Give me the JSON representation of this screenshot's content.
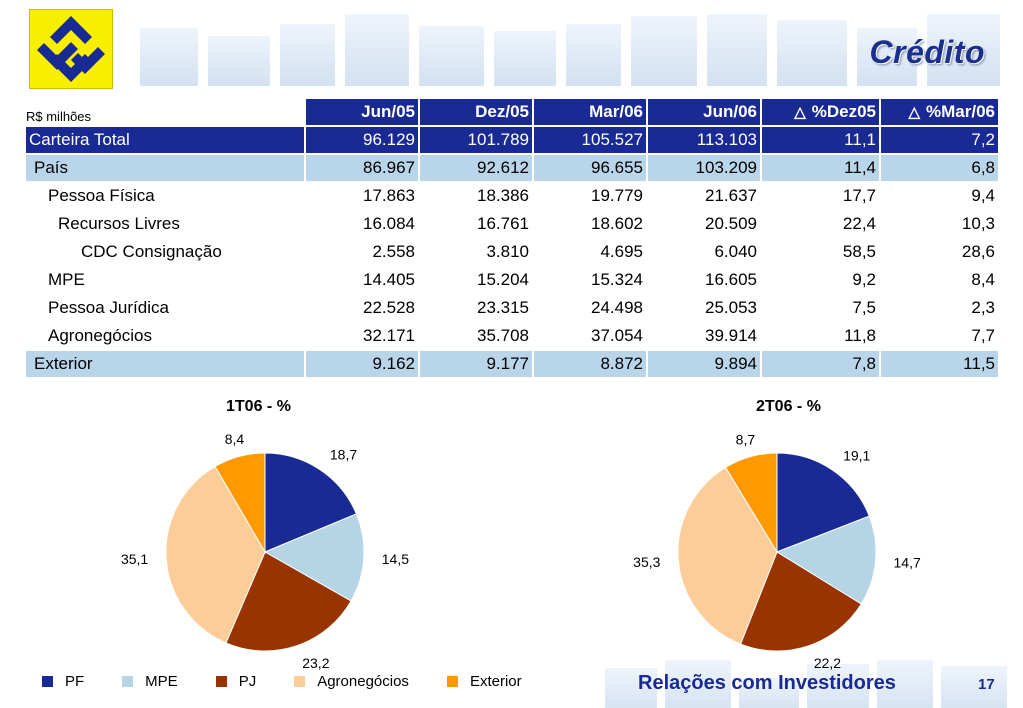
{
  "header": {
    "title": "Crédito",
    "units": "R$ milhões"
  },
  "table": {
    "columns": [
      "Jun/05",
      "Dez/05",
      "Mar/06",
      "Jun/06",
      "%Dez05",
      "%Mar/06"
    ],
    "rows": [
      {
        "label": "Carteira Total",
        "values": [
          "96.129",
          "101.789",
          "105.527",
          "113.103",
          "11,1",
          "7,2"
        ]
      },
      {
        "label": "País",
        "values": [
          "86.967",
          "92.612",
          "96.655",
          "103.209",
          "11,4",
          "6,8"
        ]
      },
      {
        "label": "Pessoa Física",
        "values": [
          "17.863",
          "18.386",
          "19.779",
          "21.637",
          "17,7",
          "9,4"
        ]
      },
      {
        "label": "Recursos Livres",
        "values": [
          "16.084",
          "16.761",
          "18.602",
          "20.509",
          "22,4",
          "10,3"
        ]
      },
      {
        "label": "CDC Consignação",
        "values": [
          "2.558",
          "3.810",
          "4.695",
          "6.040",
          "58,5",
          "28,6"
        ]
      },
      {
        "label": "MPE",
        "values": [
          "14.405",
          "15.204",
          "15.324",
          "16.605",
          "9,2",
          "8,4"
        ]
      },
      {
        "label": "Pessoa Jurídica",
        "values": [
          "22.528",
          "23.315",
          "24.498",
          "25.053",
          "7,5",
          "2,3"
        ]
      },
      {
        "label": "Agronegócios",
        "values": [
          "32.171",
          "35.708",
          "37.054",
          "39.914",
          "11,8",
          "7,7"
        ]
      },
      {
        "label": "Exterior",
        "values": [
          "9.162",
          "9.177",
          "8.872",
          "9.894",
          "7,8",
          "11,5"
        ]
      }
    ]
  },
  "colors": {
    "PF": "#1a2a95",
    "MPE": "#b5d4e6",
    "PJ": "#993300",
    "Agronegócios": "#fccc99",
    "Exterior": "#ff9900"
  },
  "chart_data": [
    {
      "type": "pie",
      "title": "1T06 - %",
      "categories": [
        "PF",
        "MPE",
        "PJ",
        "Agronegócios",
        "Exterior"
      ],
      "values": [
        18.7,
        14.5,
        23.2,
        35.1,
        8.4
      ],
      "labels": [
        "18,7",
        "14,5",
        "23,2",
        "35,1",
        "8,4"
      ]
    },
    {
      "type": "pie",
      "title": "2T06 - %",
      "categories": [
        "PF",
        "MPE",
        "PJ",
        "Agronegócios",
        "Exterior"
      ],
      "values": [
        19.1,
        14.7,
        22.2,
        35.3,
        8.7
      ],
      "labels": [
        "19,1",
        "14,7",
        "22,2",
        "35,3",
        "8,7"
      ]
    }
  ],
  "legend": [
    "PF",
    "MPE",
    "PJ",
    "Agronegócios",
    "Exterior"
  ],
  "footer": {
    "text": "Relações com Investidores",
    "page": "17"
  }
}
